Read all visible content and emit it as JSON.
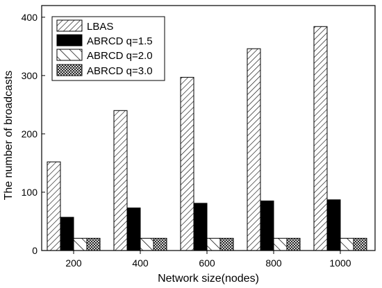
{
  "chart_data": {
    "type": "bar",
    "title": "",
    "xlabel": "Network size(nodes)",
    "ylabel": "The number of broadcasts",
    "categories": [
      "200",
      "400",
      "600",
      "800",
      "1000"
    ],
    "ylim": [
      0,
      420
    ],
    "yticks": [
      0,
      100,
      200,
      300,
      400
    ],
    "grid": false,
    "legend_position": "top-left",
    "series": [
      {
        "name": "LBAS",
        "pattern": "diagonal-hatch",
        "values": [
          152,
          240,
          297,
          346,
          384
        ]
      },
      {
        "name": "ABRCD q=1.5",
        "pattern": "solid-black",
        "values": [
          57,
          73,
          81,
          85,
          87
        ]
      },
      {
        "name": "ABRCD q=2.0",
        "pattern": "wide-diagonal-hatch",
        "values": [
          21,
          21,
          21,
          21,
          21
        ]
      },
      {
        "name": "ABRCD q=3.0",
        "pattern": "crosshatch",
        "values": [
          21,
          21,
          21,
          21,
          21
        ]
      }
    ]
  }
}
